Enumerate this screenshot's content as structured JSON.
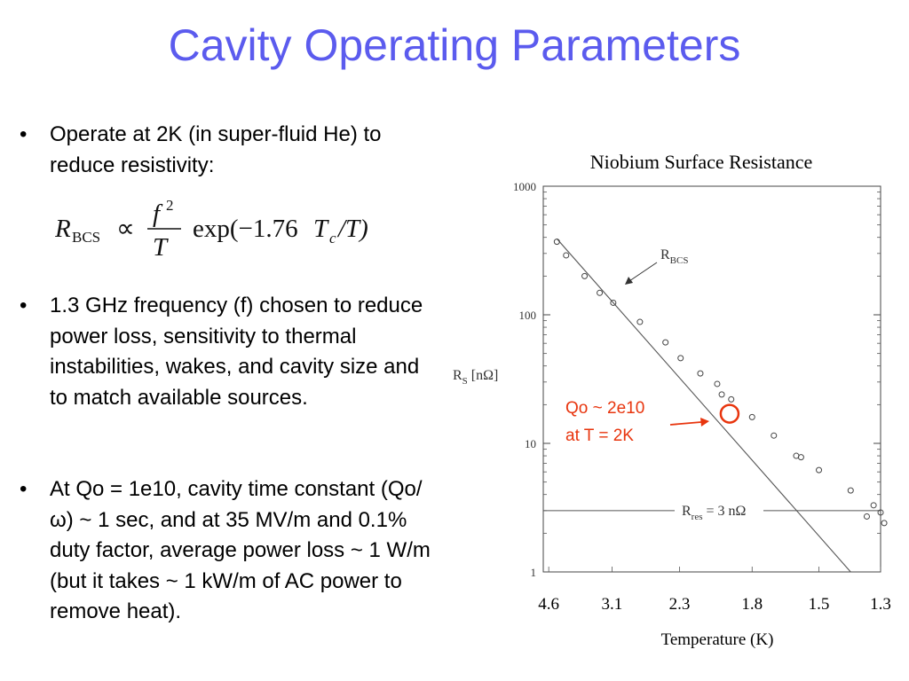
{
  "slide": {
    "title": "Cavity Operating Parameters",
    "accent_color": "#5b5bee",
    "bullet_symbol": "•",
    "bullets": [
      "Operate at 2K (in super-fluid He) to reduce resistivity:",
      "1.3 GHz frequency (f) chosen to reduce power loss, sensitivity to thermal instabilities, wakes, and cavity size and to match available sources.",
      "At Qo = 1e10, cavity time constant (Qo/ω) ~ 1 sec, and at 35 MV/m and 0.1% duty factor, average power loss ~ 1 W/m (but it takes ~ 1 kW/m of AC power to remove heat)."
    ],
    "formula": {
      "lhs_symbol": "R",
      "lhs_subscript": "BCS",
      "relation": "∝",
      "numerator": "f",
      "numerator_exponent": "2",
      "denominator": "T",
      "function": "exp(−1.76",
      "tc_symbol": "T",
      "tc_subscript": "c",
      "tail": "/T)"
    }
  },
  "chart_data": {
    "type": "scatter",
    "title": "Niobium Surface Resistance",
    "xlabel": "Temperature (K)",
    "ylabel_symbol": "R",
    "ylabel_subscript": "S",
    "ylabel_unit": "[nΩ]",
    "y_scale": "log",
    "ylim": [
      1,
      1000
    ],
    "y_ticks": [
      1,
      10,
      100,
      1000
    ],
    "x_ticks": [
      "4.6",
      "3.1",
      "2.3",
      "1.8",
      "1.5",
      "1.3"
    ],
    "xlim_inverse_T": [
      0.2083,
      0.7692
    ],
    "series": [
      {
        "marker": "open-circle",
        "points": [
          {
            "T": 4.33,
            "y": 370
          },
          {
            "T": 4.06,
            "y": 290
          },
          {
            "T": 3.61,
            "y": 200
          },
          {
            "T": 3.31,
            "y": 148
          },
          {
            "T": 3.08,
            "y": 124
          },
          {
            "T": 2.71,
            "y": 88
          },
          {
            "T": 2.43,
            "y": 61
          },
          {
            "T": 2.29,
            "y": 46
          },
          {
            "T": 2.13,
            "y": 35
          },
          {
            "T": 2.01,
            "y": 29
          },
          {
            "T": 1.98,
            "y": 24
          },
          {
            "T": 1.92,
            "y": 22
          },
          {
            "T": 1.8,
            "y": 16
          },
          {
            "T": 1.69,
            "y": 11.5
          },
          {
            "T": 1.59,
            "y": 8
          },
          {
            "T": 1.57,
            "y": 7.8
          },
          {
            "T": 1.5,
            "y": 6.2
          },
          {
            "T": 1.39,
            "y": 4.3
          },
          {
            "T": 1.34,
            "y": 2.7
          },
          {
            "T": 1.32,
            "y": 3.3
          },
          {
            "T": 1.3,
            "y": 2.9
          },
          {
            "T": 1.29,
            "y": 2.4
          }
        ]
      }
    ],
    "fit_line": {
      "label_symbol": "R",
      "label_subscript": "BCS",
      "from": {
        "T": 4.33,
        "y": 390
      },
      "to": {
        "T": 1.39,
        "y": 1
      }
    },
    "residual_line": {
      "label_symbol": "R",
      "label_subscript": "res",
      "label_value": "= 3 nΩ",
      "y": 3
    },
    "annotation": {
      "color": "#e8350e",
      "lines": [
        "Qo ~ 2e10",
        "at T = 2K"
      ],
      "circle_at": {
        "T": 1.93,
        "y": 17
      }
    }
  }
}
